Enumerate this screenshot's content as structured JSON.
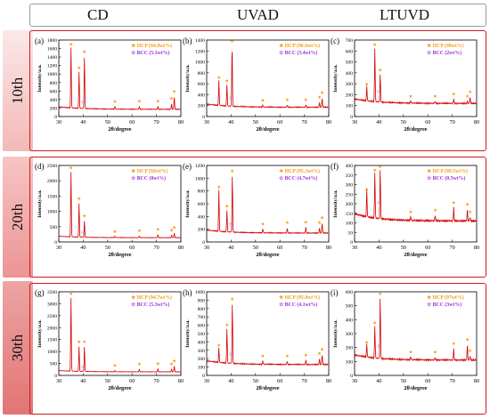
{
  "columns": [
    "CD",
    "UVAD",
    "LTUVD"
  ],
  "rows": [
    "10th",
    "20th",
    "30th"
  ],
  "colors": {
    "pattern_line": "#d40000",
    "hcp_marker": "#f39c12",
    "bcc_marker": "#9b30d9",
    "frame": "#d31a1a",
    "row_tab_top": "#fbe3e3",
    "row_tab_bottom": "#e98888"
  },
  "chart_data": [
    {
      "panel": "a",
      "type": "line",
      "xlabel": "2θ/degree",
      "ylabel": "Intensity/a.u.",
      "xlim": [
        30,
        80
      ],
      "ylim": [
        0,
        1800
      ],
      "xticks": [
        30,
        40,
        50,
        60,
        70,
        80
      ],
      "yticks": [
        0,
        200,
        400,
        600,
        800,
        1000,
        1200,
        1400,
        1600,
        1800
      ],
      "legend": [
        "HCP (94.9wt%)",
        "BCC (5.1wt%)"
      ],
      "baseline": 170,
      "peaks": [
        {
          "x": 35.0,
          "y": 1580
        },
        {
          "x": 38.3,
          "y": 1030
        },
        {
          "x": 40.5,
          "y": 1400
        },
        {
          "x": 53.0,
          "y": 230
        },
        {
          "x": 63.0,
          "y": 240
        },
        {
          "x": 70.6,
          "y": 240
        },
        {
          "x": 76.2,
          "y": 300
        },
        {
          "x": 77.3,
          "y": 470
        }
      ],
      "hcp_marks": [
        35.0,
        38.3,
        40.5,
        53.0,
        63.0,
        70.6,
        76.2,
        77.3
      ],
      "bcc_marks": [
        39.8
      ]
    },
    {
      "panel": "b",
      "type": "line",
      "xlabel": "2θ/degree",
      "ylabel": "Intensity/a.u.",
      "xlim": [
        30,
        80
      ],
      "ylim": [
        0,
        1400
      ],
      "xticks": [
        30,
        40,
        50,
        60,
        70,
        80
      ],
      "yticks": [
        0,
        200,
        400,
        600,
        800,
        1000,
        1200,
        1400
      ],
      "legend": [
        "HCP (96.6wt%)",
        "BCC (3.4wt%)"
      ],
      "baseline": 170,
      "peaks": [
        {
          "x": 35.0,
          "y": 620
        },
        {
          "x": 38.3,
          "y": 560
        },
        {
          "x": 40.4,
          "y": 1320
        },
        {
          "x": 53.0,
          "y": 200
        },
        {
          "x": 63.0,
          "y": 210
        },
        {
          "x": 70.6,
          "y": 210
        },
        {
          "x": 76.2,
          "y": 260
        },
        {
          "x": 77.3,
          "y": 340
        }
      ],
      "hcp_marks": [
        35.0,
        38.3,
        40.4,
        53.0,
        63.0,
        70.6,
        76.2,
        77.3
      ],
      "bcc_marks": [
        39.8
      ]
    },
    {
      "panel": "c",
      "type": "line",
      "xlabel": "2θ/degree",
      "ylabel": "Intensity/a.u.",
      "xlim": [
        30,
        80
      ],
      "ylim": [
        0,
        700
      ],
      "xticks": [
        30,
        40,
        50,
        60,
        70,
        80
      ],
      "yticks": [
        0,
        100,
        200,
        300,
        400,
        500,
        600,
        700
      ],
      "legend": [
        "HCP (98wt%)",
        "BCC (2wt%)"
      ],
      "baseline": 120,
      "peaks": [
        {
          "x": 35.0,
          "y": 250
        },
        {
          "x": 38.3,
          "y": 610
        },
        {
          "x": 40.5,
          "y": 380
        },
        {
          "x": 53.0,
          "y": 140
        },
        {
          "x": 63.0,
          "y": 140
        },
        {
          "x": 70.6,
          "y": 160
        },
        {
          "x": 76.2,
          "y": 140
        },
        {
          "x": 77.3,
          "y": 180
        }
      ],
      "hcp_marks": [
        35.0,
        38.3,
        40.5,
        53.0,
        63.0,
        70.6,
        76.2,
        77.3
      ],
      "bcc_marks": [
        39.8
      ]
    },
    {
      "panel": "d",
      "type": "line",
      "xlabel": "2θ/degree",
      "ylabel": "Intensity/a.u.",
      "xlim": [
        30,
        80
      ],
      "ylim": [
        0,
        2500
      ],
      "xticks": [
        30,
        40,
        50,
        60,
        70,
        80
      ],
      "yticks": [
        0,
        500,
        1000,
        1500,
        2000,
        2500
      ],
      "legend": [
        "HCP (92wt%)",
        "BCC (8wt%)"
      ],
      "baseline": 140,
      "peaks": [
        {
          "x": 35.0,
          "y": 2250
        },
        {
          "x": 38.3,
          "y": 1250
        },
        {
          "x": 40.5,
          "y": 680
        },
        {
          "x": 53.0,
          "y": 180
        },
        {
          "x": 63.0,
          "y": 200
        },
        {
          "x": 70.6,
          "y": 240
        },
        {
          "x": 76.2,
          "y": 220
        },
        {
          "x": 77.3,
          "y": 300
        }
      ],
      "hcp_marks": [
        35.0,
        38.3,
        40.5,
        53.0,
        63.0,
        70.6,
        76.2,
        77.3
      ],
      "bcc_marks": [
        39.8
      ]
    },
    {
      "panel": "e",
      "type": "line",
      "xlabel": "2θ/degree",
      "ylabel": "Intensity/a.u.",
      "xlim": [
        30,
        80
      ],
      "ylim": [
        0,
        1200
      ],
      "xticks": [
        30,
        40,
        50,
        60,
        70,
        80
      ],
      "yticks": [
        0,
        200,
        400,
        600,
        800,
        1000,
        1200
      ],
      "legend": [
        "HCP (95.3wt%)",
        "BCC (4.7wt%)"
      ],
      "baseline": 140,
      "peaks": [
        {
          "x": 35.0,
          "y": 780
        },
        {
          "x": 38.3,
          "y": 480
        },
        {
          "x": 40.5,
          "y": 1030
        },
        {
          "x": 53.0,
          "y": 200
        },
        {
          "x": 63.0,
          "y": 220
        },
        {
          "x": 70.6,
          "y": 230
        },
        {
          "x": 76.2,
          "y": 220
        },
        {
          "x": 77.3,
          "y": 300
        }
      ],
      "hcp_marks": [
        35.0,
        38.3,
        40.5,
        53.0,
        63.0,
        70.6,
        76.2,
        77.3
      ],
      "bcc_marks": [
        39.8
      ]
    },
    {
      "panel": "f",
      "type": "line",
      "xlabel": "2θ/degree",
      "ylabel": "Intensity/a.u.",
      "xlim": [
        30,
        80
      ],
      "ylim": [
        0,
        400
      ],
      "xticks": [
        30,
        40,
        50,
        60,
        70,
        80
      ],
      "yticks": [
        0,
        50,
        100,
        150,
        200,
        250,
        300,
        350,
        400
      ],
      "legend": [
        "HCP (99.5wt%)",
        "BCC (0.5wt%)"
      ],
      "baseline": 110,
      "peaks": [
        {
          "x": 35.0,
          "y": 250
        },
        {
          "x": 38.3,
          "y": 350
        },
        {
          "x": 40.5,
          "y": 370
        },
        {
          "x": 53.0,
          "y": 130
        },
        {
          "x": 63.0,
          "y": 140
        },
        {
          "x": 70.6,
          "y": 180
        },
        {
          "x": 76.2,
          "y": 170
        },
        {
          "x": 77.3,
          "y": 130
        }
      ],
      "hcp_marks": [
        35.0,
        38.3,
        40.5,
        53.0,
        63.0,
        70.6,
        76.2,
        77.3
      ],
      "bcc_marks": [
        39.8
      ]
    },
    {
      "panel": "g",
      "type": "line",
      "xlabel": "2θ/degree",
      "ylabel": "Intensity/a.u.",
      "xlim": [
        30,
        80
      ],
      "ylim": [
        0,
        3500
      ],
      "xticks": [
        30,
        40,
        50,
        60,
        70,
        80
      ],
      "yticks": [
        0,
        500,
        1000,
        1500,
        2000,
        2500,
        3000,
        3500
      ],
      "legend": [
        "HCP (94.7wt%)",
        "BCC (5.3wt%)"
      ],
      "baseline": 150,
      "peaks": [
        {
          "x": 35.0,
          "y": 3200
        },
        {
          "x": 38.3,
          "y": 1200
        },
        {
          "x": 40.5,
          "y": 1200
        },
        {
          "x": 53.0,
          "y": 200
        },
        {
          "x": 63.0,
          "y": 260
        },
        {
          "x": 70.6,
          "y": 280
        },
        {
          "x": 76.2,
          "y": 260
        },
        {
          "x": 77.3,
          "y": 400
        }
      ],
      "hcp_marks": [
        35.0,
        38.3,
        40.5,
        53.0,
        63.0,
        70.6,
        76.2,
        77.3
      ],
      "bcc_marks": [
        39.8
      ]
    },
    {
      "panel": "h",
      "type": "line",
      "xlabel": "2θ/degree",
      "ylabel": "Intensity/a.u.",
      "xlim": [
        30,
        80
      ],
      "ylim": [
        0,
        1000
      ],
      "xticks": [
        30,
        40,
        50,
        60,
        70,
        80
      ],
      "yticks": [
        0,
        100,
        200,
        300,
        400,
        500,
        600,
        700,
        800,
        900,
        1000
      ],
      "legend": [
        "HCP (95.9wt%)",
        "BCC (4.1wt%)"
      ],
      "baseline": 130,
      "peaks": [
        {
          "x": 35.0,
          "y": 300
        },
        {
          "x": 38.3,
          "y": 540
        },
        {
          "x": 40.5,
          "y": 850
        },
        {
          "x": 53.0,
          "y": 170
        },
        {
          "x": 63.0,
          "y": 170
        },
        {
          "x": 70.6,
          "y": 180
        },
        {
          "x": 76.2,
          "y": 200
        },
        {
          "x": 77.3,
          "y": 250
        }
      ],
      "hcp_marks": [
        35.0,
        38.3,
        40.5,
        53.0,
        63.0,
        70.6,
        76.2,
        77.3
      ],
      "bcc_marks": [
        39.8
      ]
    },
    {
      "panel": "i",
      "type": "line",
      "xlabel": "2θ/degree",
      "ylabel": "Intensity/a.u.",
      "xlim": [
        30,
        80
      ],
      "ylim": [
        0,
        600
      ],
      "xticks": [
        30,
        40,
        50,
        60,
        70,
        80
      ],
      "yticks": [
        0,
        100,
        200,
        300,
        400,
        500,
        600
      ],
      "legend": [
        "HCP (97wt%)",
        "BCC (3wt%)"
      ],
      "baseline": 110,
      "peaks": [
        {
          "x": 35.0,
          "y": 200
        },
        {
          "x": 38.3,
          "y": 340
        },
        {
          "x": 40.5,
          "y": 550
        },
        {
          "x": 53.0,
          "y": 130
        },
        {
          "x": 63.0,
          "y": 130
        },
        {
          "x": 70.6,
          "y": 190
        },
        {
          "x": 76.2,
          "y": 220
        },
        {
          "x": 77.3,
          "y": 140
        }
      ],
      "hcp_marks": [
        35.0,
        38.3,
        40.5,
        53.0,
        63.0,
        70.6,
        76.2,
        77.3
      ],
      "bcc_marks": [
        39.8
      ]
    }
  ]
}
